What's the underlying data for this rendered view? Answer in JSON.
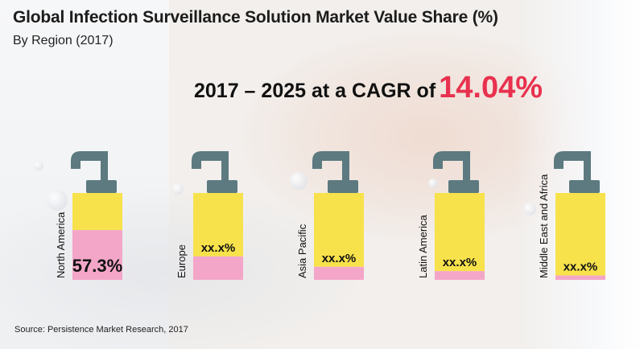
{
  "header": {
    "title": "Global Infection Surveillance Solution Market Value Share (%)",
    "subtitle": "By Region (2017)",
    "cagr_text": "2017 – 2025 at a CAGR of",
    "cagr_value": "14.04%"
  },
  "colors": {
    "share": "#f4a6c8",
    "rest": "#f7e24c",
    "pump": "#5c7a80",
    "accent": "#e8314e"
  },
  "chart_data": {
    "type": "bar",
    "title": "Global Infection Surveillance Solution Market Value Share (%)",
    "subtitle": "By Region (2017)",
    "categories": [
      "North America",
      "Europe",
      "Asia Pacific",
      "Latin America",
      "Middle East and Africa"
    ],
    "series": [
      {
        "values": [
          57.3,
          27,
          15,
          10,
          5
        ],
        "labels": [
          "57.3%",
          "xx.x%",
          "xx.x%",
          "xx.x%",
          "xx.x%"
        ]
      }
    ],
    "ylim": [
      0,
      100
    ],
    "annotations": [
      "2017 – 2025 at a CAGR of 14.04%"
    ]
  },
  "footer": {
    "source": "Source: Persistence Market Research, 2017"
  }
}
